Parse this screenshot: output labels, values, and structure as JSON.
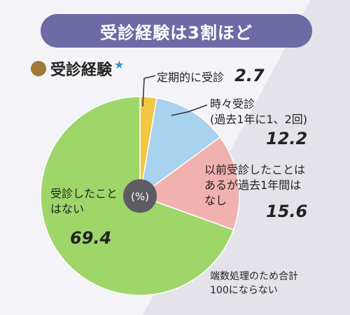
{
  "title": "受診経験は3割ほど",
  "subtitle": "受診経験",
  "center_label": "(%)",
  "note": [
    "端数処理のため合計",
    "100にならない"
  ],
  "colors": {
    "banner": "#6e6aa6",
    "regular": "#f2c744",
    "sometimes": "#a8d2ee",
    "previous": "#f1b1ae",
    "never": "#9ed66a"
  },
  "chart_data": {
    "type": "pie",
    "unit": "%",
    "slices": [
      {
        "key": "regular",
        "label": [
          "定期的に受診"
        ],
        "value": 2.7,
        "value_text": "2.7"
      },
      {
        "key": "sometimes",
        "label": [
          "時々受診",
          "(過去1年に1、2回)"
        ],
        "value": 12.2,
        "value_text": "12.2"
      },
      {
        "key": "previous",
        "label": [
          "以前受診したことは",
          "あるが過去1年間は",
          "なし"
        ],
        "value": 15.6,
        "value_text": "15.6"
      },
      {
        "key": "never",
        "label": [
          "受診したこと",
          "はない"
        ],
        "value": 69.4,
        "value_text": "69.4"
      }
    ]
  }
}
